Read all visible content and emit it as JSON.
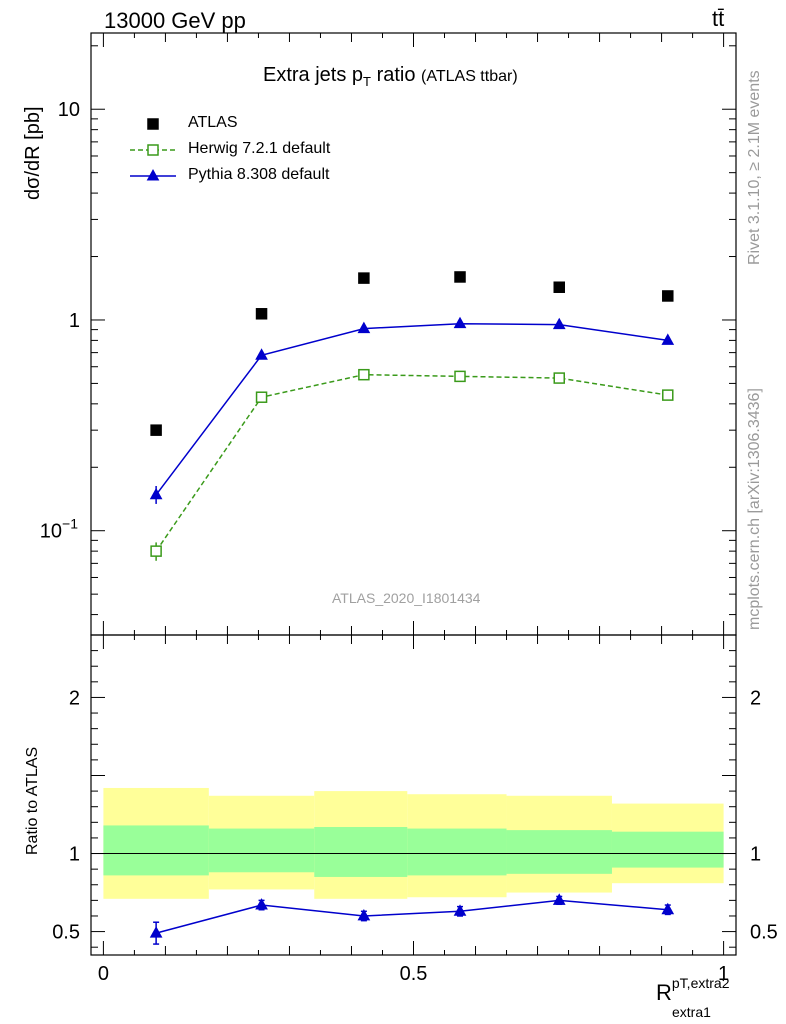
{
  "header": {
    "left": "13000 GeV pp",
    "right": "tt̄"
  },
  "side": {
    "rivet": "Rivet 3.1.10, ≥ 2.1M events",
    "mcplots": "mcplots.cern.ch [arXiv:1306.3436]"
  },
  "chart_data": [
    {
      "type": "scatter",
      "title": "Extra jets p",
      "title_sub": "T",
      "title_tail": "ratio",
      "title_note": "(ATLAS ttbar)",
      "watermark": "ATLAS_2020_I1801434",
      "y_scale": "log",
      "ylim": [
        0.032,
        23
      ],
      "xlim": [
        -0.02,
        1.02
      ],
      "ylabel": "dσ/dR [pb]",
      "y_ticks": [
        "10^-1",
        "1",
        "10"
      ],
      "legend_position": "top-left",
      "x": [
        0.085,
        0.255,
        0.42,
        0.575,
        0.735,
        0.91
      ],
      "series": [
        {
          "name": "ATLAS",
          "color": "#000000",
          "marker": "square-filled",
          "values": [
            0.3,
            1.07,
            1.58,
            1.6,
            1.43,
            1.3
          ]
        },
        {
          "name": "Herwig 7.2.1 default",
          "color": "#3a9a1a",
          "marker": "square-open",
          "dashed": true,
          "values": [
            0.08,
            0.43,
            0.55,
            0.54,
            0.53,
            0.44
          ]
        },
        {
          "name": "Pythia 8.308 default",
          "color": "#0000cc",
          "marker": "triangle",
          "values": [
            0.148,
            0.68,
            0.91,
            0.96,
            0.95,
            0.8
          ]
        }
      ]
    },
    {
      "type": "scatter",
      "ylabel": "Ratio to ATLAS",
      "xlabel": "R",
      "xlabel_sup": "pT,extra2",
      "xlabel_sub": "extra1",
      "ylim": [
        0.35,
        2.4
      ],
      "xlim": [
        -0.02,
        1.02
      ],
      "x_ticks": [
        "0",
        "0.5",
        "1"
      ],
      "y_ticks": [
        "0.5",
        "1",
        "2"
      ],
      "reference_line": 1,
      "bin_edges": [
        0,
        0.17,
        0.34,
        0.49,
        0.65,
        0.82,
        1.0
      ],
      "band_outer": [
        [
          0.71,
          1.42
        ],
        [
          0.77,
          1.37
        ],
        [
          0.71,
          1.4
        ],
        [
          0.72,
          1.38
        ],
        [
          0.75,
          1.37
        ],
        [
          0.81,
          1.32
        ]
      ],
      "band_inner": [
        [
          0.86,
          1.18
        ],
        [
          0.88,
          1.16
        ],
        [
          0.85,
          1.17
        ],
        [
          0.86,
          1.16
        ],
        [
          0.87,
          1.15
        ],
        [
          0.91,
          1.14
        ]
      ],
      "band_outer_color": "#ffff99",
      "band_inner_color": "#99ff99",
      "series": [
        {
          "name": "Pythia 8.308 default",
          "color": "#0000cc",
          "values": [
            0.49,
            0.67,
            0.6,
            0.63,
            0.7,
            0.64
          ],
          "errors": [
            0.07,
            0.03,
            0.03,
            0.03,
            0.025,
            0.03
          ]
        }
      ]
    }
  ]
}
